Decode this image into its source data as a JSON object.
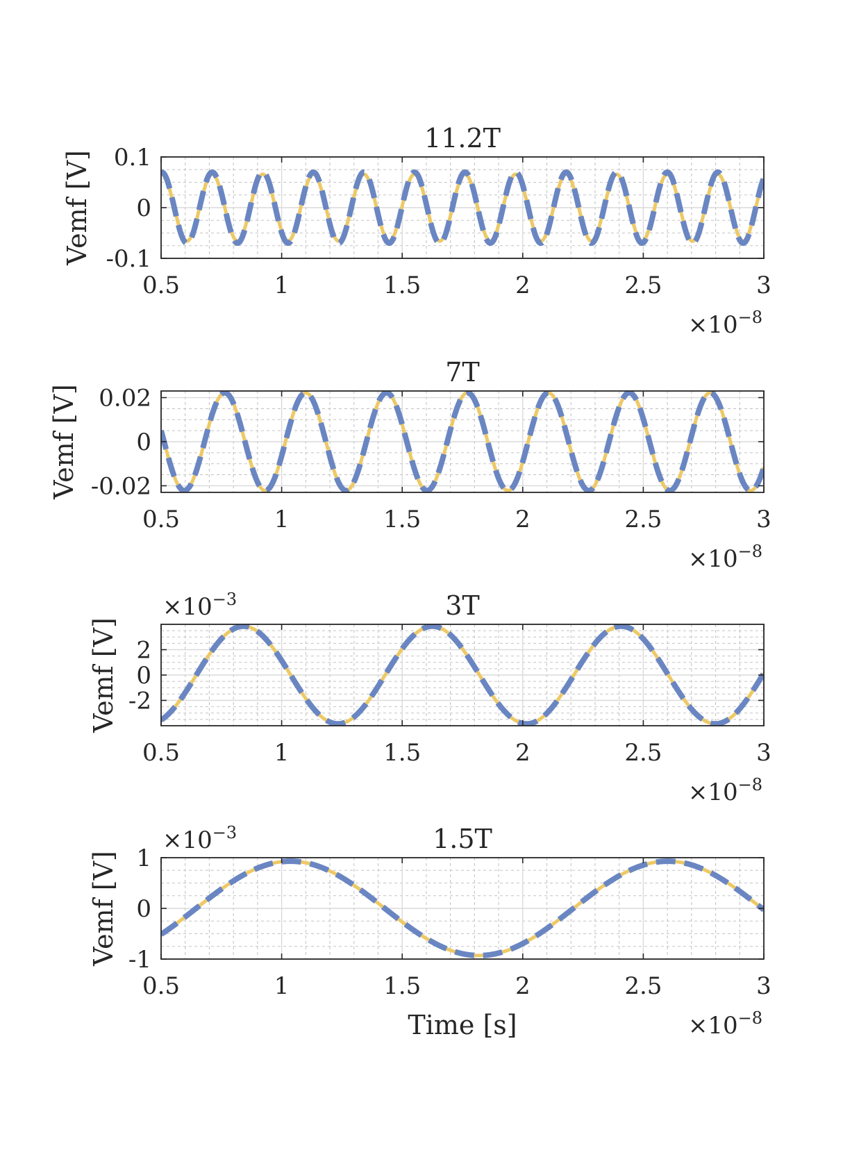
{
  "chart_data": [
    {
      "type": "line",
      "title": "11.2T",
      "ylabel": "Vemf [V]",
      "xlabel": "",
      "x_multiplier": "×10",
      "x_exponent": "−8",
      "y_multiplier": "",
      "y_exponent": "",
      "xlim": [
        5e-09,
        3e-08
      ],
      "ylim": [
        -0.1,
        0.1
      ],
      "xticks": [
        5e-09,
        1e-08,
        1.5e-08,
        2e-08,
        2.5e-08,
        3e-08
      ],
      "xtick_labels": [
        "0.5",
        "1",
        "1.5",
        "2",
        "2.5",
        "3"
      ],
      "yticks": [
        -0.1,
        0,
        0.1
      ],
      "ytick_labels": [
        "-0.1",
        "0",
        "0.1"
      ],
      "grid": true,
      "series": [
        {
          "style": "solid",
          "color": "#EDC967",
          "amplitude": 0.066,
          "frequency": 476800000,
          "phase": -0.91
        },
        {
          "style": "dashed",
          "color": "#6A86C2",
          "amplitude": 0.07,
          "frequency": 476800000,
          "phase": -0.91
        }
      ]
    },
    {
      "type": "line",
      "title": "7T",
      "ylabel": "Vemf [V]",
      "xlabel": "",
      "x_multiplier": "×10",
      "x_exponent": "−8",
      "y_multiplier": "",
      "y_exponent": "",
      "xlim": [
        5e-09,
        3e-08
      ],
      "ylim": [
        -0.023,
        0.023
      ],
      "xticks": [
        5e-09,
        1e-08,
        1.5e-08,
        2e-08,
        2.5e-08,
        3e-08
      ],
      "xtick_labels": [
        "0.5",
        "1",
        "1.5",
        "2",
        "2.5",
        "3"
      ],
      "yticks": [
        -0.02,
        0,
        0.02
      ],
      "ytick_labels": [
        "-0.02",
        "0",
        "0.02"
      ],
      "grid": true,
      "series": [
        {
          "style": "solid",
          "color": "#EDC967",
          "amplitude": 0.0222,
          "frequency": 298000000,
          "phase": -0.17
        },
        {
          "style": "dashed",
          "color": "#6A86C2",
          "amplitude": 0.0222,
          "frequency": 298000000,
          "phase": -0.17
        }
      ]
    },
    {
      "type": "line",
      "title": "3T",
      "ylabel": "Vemf [V]",
      "xlabel": "",
      "x_multiplier": "×10",
      "x_exponent": "−8",
      "y_multiplier": "×10",
      "y_exponent": "−3",
      "xlim": [
        5e-09,
        3e-08
      ],
      "ylim": [
        -0.004,
        0.004
      ],
      "xticks": [
        5e-09,
        1e-08,
        1.5e-08,
        2e-08,
        2.5e-08,
        3e-08
      ],
      "xtick_labels": [
        "0.5",
        "1",
        "1.5",
        "2",
        "2.5",
        "3"
      ],
      "yticks": [
        -0.002,
        0,
        0.002
      ],
      "ytick_labels": [
        "-2",
        "0",
        "2"
      ],
      "grid": true,
      "series": [
        {
          "style": "solid",
          "color": "#EDC967",
          "amplitude": 0.00385,
          "frequency": 127700000,
          "phase": 1.1
        },
        {
          "style": "dashed",
          "color": "#6A86C2",
          "amplitude": 0.00385,
          "frequency": 127700000,
          "phase": 1.1
        }
      ]
    },
    {
      "type": "line",
      "title": "1.5T",
      "ylabel": "Vemf [V]",
      "xlabel": "Time [s]",
      "x_multiplier": "×10",
      "x_exponent": "−8",
      "y_multiplier": "×10",
      "y_exponent": "−3",
      "xlim": [
        5e-09,
        3e-08
      ],
      "ylim": [
        -0.001,
        0.001
      ],
      "xticks": [
        5e-09,
        1e-08,
        1.5e-08,
        2e-08,
        2.5e-08,
        3e-08
      ],
      "xtick_labels": [
        "0.5",
        "1",
        "1.5",
        "2",
        "2.5",
        "3"
      ],
      "yticks": [
        -0.001,
        0,
        0.001
      ],
      "ytick_labels": [
        "-1",
        "0",
        "1"
      ],
      "grid": true,
      "series": [
        {
          "style": "solid",
          "color": "#EDC967",
          "amplitude": 0.00093,
          "frequency": 63900000,
          "phase": -2.59
        },
        {
          "style": "dashed",
          "color": "#6A86C2",
          "amplitude": 0.00093,
          "frequency": 63900000,
          "phase": -2.59
        }
      ]
    }
  ]
}
